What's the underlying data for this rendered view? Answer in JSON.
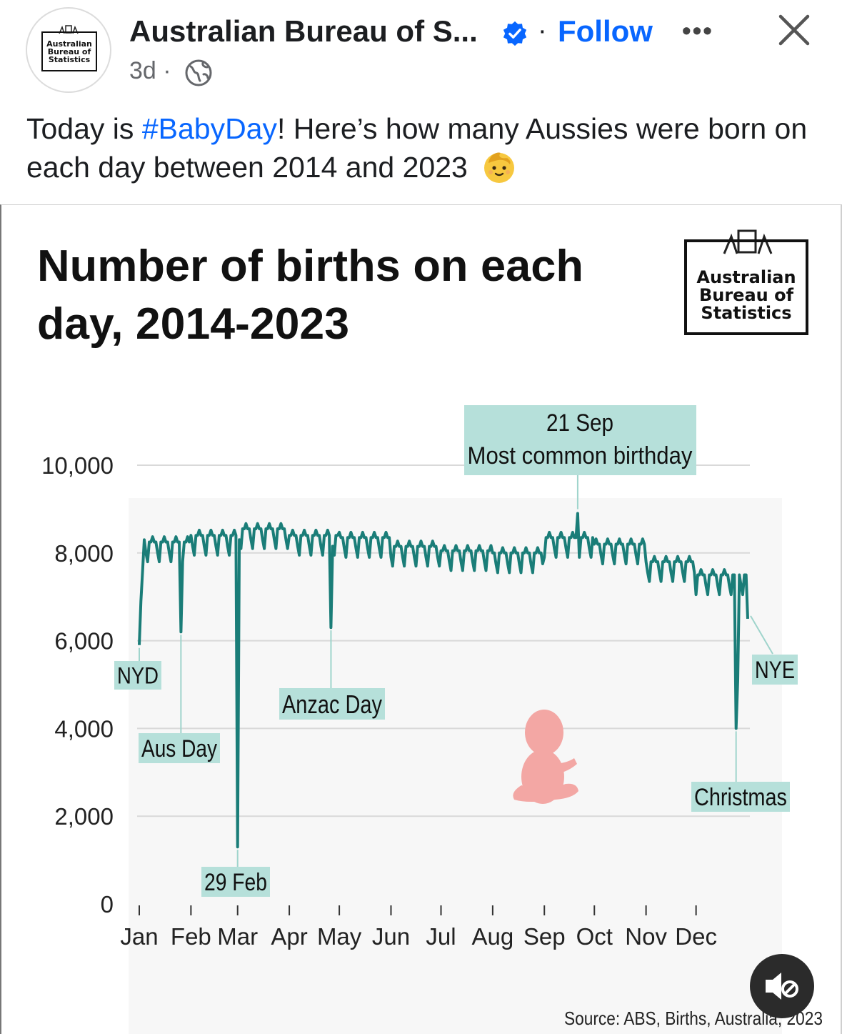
{
  "header": {
    "page_name": "Australian Bureau of S...",
    "follow_label": "Follow",
    "dot": "·",
    "time": "3d ·",
    "more_label": "•••",
    "avatar_lines": [
      "Australian",
      "Bureau of",
      "Statistics"
    ]
  },
  "post": {
    "text_before": "Today is ",
    "hashtag": "#BabyDay",
    "text_after": "! Here’s how many Aussies were born on each day between 2014 and 2023"
  },
  "icons": {
    "verified": "verified-badge-icon",
    "globe": "globe-icon",
    "close": "close-icon",
    "more": "more-icon",
    "mute": "speaker-muted-icon",
    "baby": "baby-face-emoji"
  },
  "colors": {
    "accent": "#0866ff",
    "line": "#1a7d78",
    "annotation_bg": "#b6e0da",
    "baby": "#f3a7a4"
  },
  "chart_data": {
    "type": "line",
    "title": "Number of births on each day, 2014-2023",
    "logo_lines": [
      "Australian",
      "Bureau of",
      "Statistics"
    ],
    "source": "Source: ABS, Births, Australia, 2023",
    "ylim": [
      0,
      10000
    ],
    "y_ticks": [
      0,
      2000,
      4000,
      6000,
      8000,
      10000
    ],
    "y_tick_labels": [
      "0",
      "2,000",
      "4,000",
      "6,000",
      "8,000",
      "10,000"
    ],
    "x_ticks": [
      1,
      32,
      60,
      91,
      121,
      152,
      182,
      213,
      244,
      274,
      305,
      335
    ],
    "x_tick_labels": [
      "Jan",
      "Feb",
      "Mar",
      "Apr",
      "May",
      "Jun",
      "Jul",
      "Aug",
      "Sep",
      "Oct",
      "Nov",
      "Dec"
    ],
    "x_range": [
      1,
      366
    ],
    "monthly_levels": [
      8250,
      8400,
      8550,
      8400,
      8350,
      8150,
      8050,
      8000,
      8350,
      8200,
      7800,
      7500
    ],
    "weekly_dip": 450,
    "special_days": [
      {
        "day": 1,
        "value": 5900
      },
      {
        "day": 26,
        "value": 6200
      },
      {
        "day": 60,
        "value": 1300
      },
      {
        "day": 116,
        "value": 6300
      },
      {
        "day": 264,
        "value": 8900
      },
      {
        "day": 359,
        "value": 4000
      },
      {
        "day": 360,
        "value": 5100
      },
      {
        "day": 366,
        "value": 6500
      }
    ],
    "annotations": [
      {
        "label": "NYD",
        "day": 1,
        "value": 5900
      },
      {
        "label": "Aus Day",
        "day": 26,
        "value": 6200
      },
      {
        "label": "29 Feb",
        "day": 60,
        "value": 1300
      },
      {
        "label": "Anzac Day",
        "day": 116,
        "value": 6300
      },
      {
        "label": "21 Sep",
        "label2": "Most common birthday",
        "day": 264,
        "value": 8900
      },
      {
        "label": "Christmas",
        "day": 359,
        "value": 4000
      },
      {
        "label": "NYE",
        "day": 366,
        "value": 6500
      }
    ]
  }
}
